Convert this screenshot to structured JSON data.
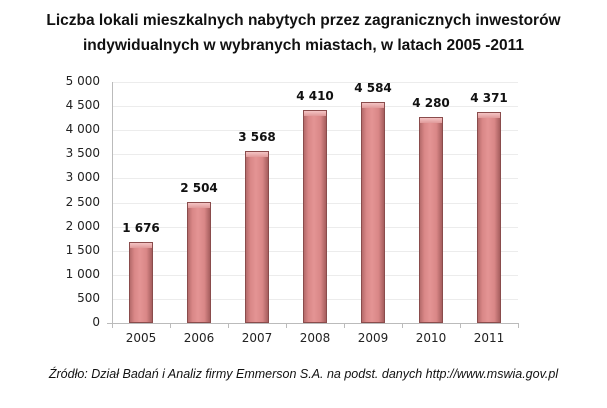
{
  "title_line1": "Liczba lokali mieszkalnych nabytych przez zagranicznych inwestorów",
  "title_line2": "indywidualnych w wybranych miastach, w latach 2005 -2011",
  "source": "Źródło: Dział Badań i Analiz firmy Emmerson S.A. na podst. danych http://www.mswia.gov.pl",
  "yticks": [
    "0",
    "500",
    "1 000",
    "1 500",
    "2 000",
    "2 500",
    "3 000",
    "3 500",
    "4 000",
    "4 500",
    "5 000"
  ],
  "value_labels": [
    "1 676",
    "2 504",
    "3 568",
    "4 410",
    "4 584",
    "4 280",
    "4 371"
  ],
  "chart_data": {
    "type": "bar",
    "title": "Liczba lokali mieszkalnych nabytych przez zagranicznych inwestorów indywidualnych w wybranych miastach, w latach 2005 -2011",
    "categories": [
      "2005",
      "2006",
      "2007",
      "2008",
      "2009",
      "2010",
      "2011"
    ],
    "values": [
      1676,
      2504,
      3568,
      4410,
      4584,
      4280,
      4371
    ],
    "xlabel": "",
    "ylabel": "",
    "ylim": [
      0,
      5000
    ],
    "ytick_step": 500,
    "grid": true,
    "legend": false,
    "bar_color": "#d98787",
    "source": "Źródło: Dział Badań i Analiz firmy Emmerson S.A. na podst. danych http://www.mswia.gov.pl"
  }
}
